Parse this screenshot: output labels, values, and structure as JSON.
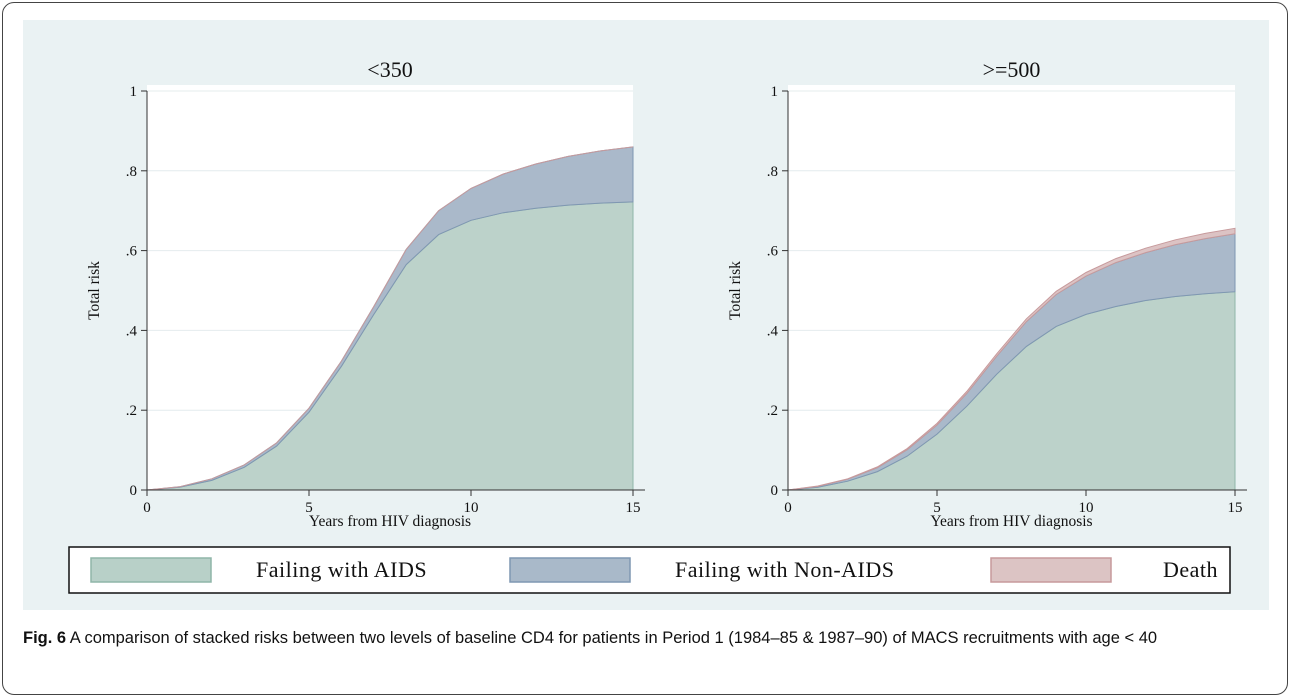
{
  "chart_data": {
    "type": "area",
    "stacked": true,
    "panels": [
      {
        "title": "<350",
        "xlabel": "Years from HIV diagnosis",
        "ylabel": "Total risk",
        "xlim": [
          0,
          15
        ],
        "ylim": [
          0,
          1
        ],
        "xticks": [
          "0",
          "5",
          "10",
          "15"
        ],
        "yticks": [
          "0",
          ".2",
          ".4",
          ".6",
          ".8",
          "1"
        ],
        "grid": true,
        "x": [
          0,
          1,
          2,
          3,
          4,
          5,
          6,
          7,
          8,
          9,
          10,
          11,
          12,
          13,
          14,
          15
        ],
        "series": [
          {
            "name": "Failing with AIDS",
            "values": [
              0,
              0.007,
              0.024,
              0.057,
              0.11,
              0.195,
              0.31,
              0.44,
              0.565,
              0.64,
              0.676,
              0.695,
              0.706,
              0.714,
              0.719,
              0.722
            ]
          },
          {
            "name": "Failing with Non-AIDS",
            "values": [
              0,
              0.001,
              0.004,
              0.006,
              0.008,
              0.01,
              0.013,
              0.02,
              0.038,
              0.06,
              0.08,
              0.097,
              0.111,
              0.122,
              0.131,
              0.138
            ]
          },
          {
            "name": "Death",
            "values": [
              0,
              0,
              0,
              0,
              0,
              0,
              0,
              0,
              0,
              0,
              0,
              0,
              0,
              0,
              0,
              0
            ]
          }
        ]
      },
      {
        "title": ">=500",
        "xlabel": "Years from HIV diagnosis",
        "ylabel": "Total risk",
        "xlim": [
          0,
          15
        ],
        "ylim": [
          0,
          1
        ],
        "xticks": [
          "0",
          "5",
          "10",
          "15"
        ],
        "yticks": [
          "0",
          ".2",
          ".4",
          ".6",
          ".8",
          "1"
        ],
        "grid": true,
        "x": [
          0,
          1,
          2,
          3,
          4,
          5,
          6,
          7,
          8,
          9,
          10,
          11,
          12,
          13,
          14,
          15
        ],
        "series": [
          {
            "name": "Failing with AIDS",
            "values": [
              0,
              0.007,
              0.022,
              0.046,
              0.085,
              0.14,
              0.21,
              0.29,
              0.36,
              0.41,
              0.44,
              0.46,
              0.475,
              0.485,
              0.492,
              0.497
            ]
          },
          {
            "name": "Failing with Non-AIDS",
            "values": [
              0,
              0.002,
              0.005,
              0.01,
              0.016,
              0.023,
              0.032,
              0.045,
              0.062,
              0.08,
              0.096,
              0.11,
              0.12,
              0.13,
              0.138,
              0.145
            ]
          },
          {
            "name": "Death",
            "values": [
              0,
              0.001,
              0.001,
              0.002,
              0.003,
              0.004,
              0.005,
              0.006,
              0.007,
              0.008,
              0.009,
              0.01,
              0.011,
              0.012,
              0.013,
              0.014
            ]
          }
        ]
      }
    ],
    "legend": {
      "position": "bottom",
      "items": [
        {
          "label": "Failing with AIDS",
          "color": "#b8d0c8"
        },
        {
          "label": "Failing with Non-AIDS",
          "color": "#a9b9c9"
        },
        {
          "label": "Death",
          "color": "#dcc4c4"
        }
      ]
    }
  },
  "caption": {
    "label": "Fig. 6",
    "text": " A comparison of stacked risks between two levels of baseline CD4 for patients in Period 1 (1984–85 & 1987–90) of MACS recruitments with age < 40"
  }
}
